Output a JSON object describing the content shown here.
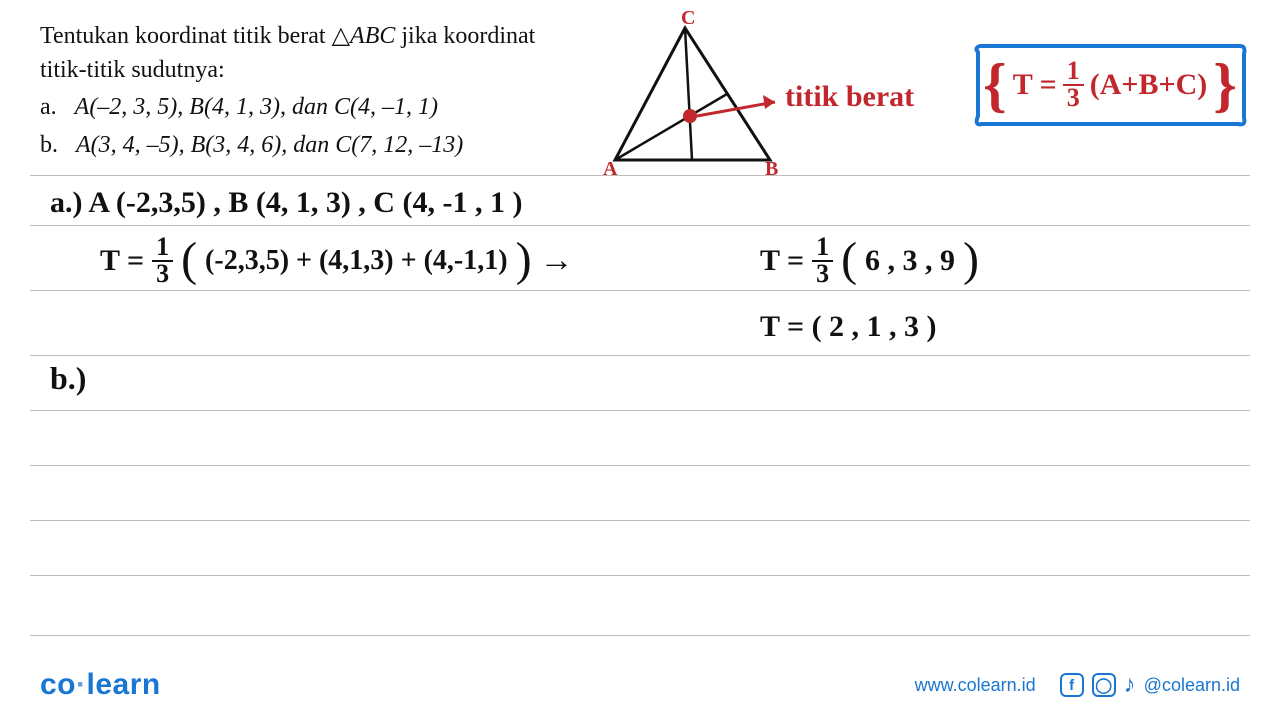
{
  "question": {
    "stem_line1": "Tentukan koordinat titik berat △",
    "stem_triangle": "ABC",
    "stem_line1_tail": " jika koordinat",
    "stem_line2": "titik-titik sudutnya:",
    "option_a_label": "a.",
    "option_a_text": "A(–2, 3, 5), B(4, 1, 3), dan C(4, –1, 1)",
    "option_b_label": "b.",
    "option_b_text": "A(3, 4, –5), B(3, 4, 6), dan C(7, 12, –13)"
  },
  "diagram": {
    "vertex_top": "C",
    "vertex_left": "A",
    "vertex_right": "B",
    "annotation": "titik berat",
    "colors": {
      "stroke": "#111111",
      "accent": "#c1272d",
      "box_border": "#1976d2"
    }
  },
  "formula": {
    "lhs": "T =",
    "frac_num": "1",
    "frac_den": "3",
    "rhs": "(A+B+C)"
  },
  "work": {
    "line_a": "a.)  A (-2,3,5)  ,  B (4, 1, 3)  ,  C (4, -1 , 1 )",
    "t_label": "T =",
    "frac_num": "1",
    "frac_den": "3",
    "sum_expr": "( (-2,3,5) + (4,1,3) + (4,-1,1) )",
    "arrow": "→",
    "t_label2": "T =",
    "result_tuple": "( 6 , 3 , 9 )",
    "final": "T  =  ( 2 ,  1 ,  3 )",
    "line_b": "b.)"
  },
  "ruled_line_positions": [
    175,
    225,
    290,
    355,
    410,
    465,
    520,
    575,
    635
  ],
  "footer": {
    "logo_left": "co",
    "logo_right": "learn",
    "url": "www.colearn.id",
    "handle": "@colearn.id"
  },
  "colors": {
    "rule": "#bdbdbd",
    "brand": "#1976d2",
    "ink": "#111111",
    "accent": "#c1272d",
    "bg": "#ffffff"
  }
}
